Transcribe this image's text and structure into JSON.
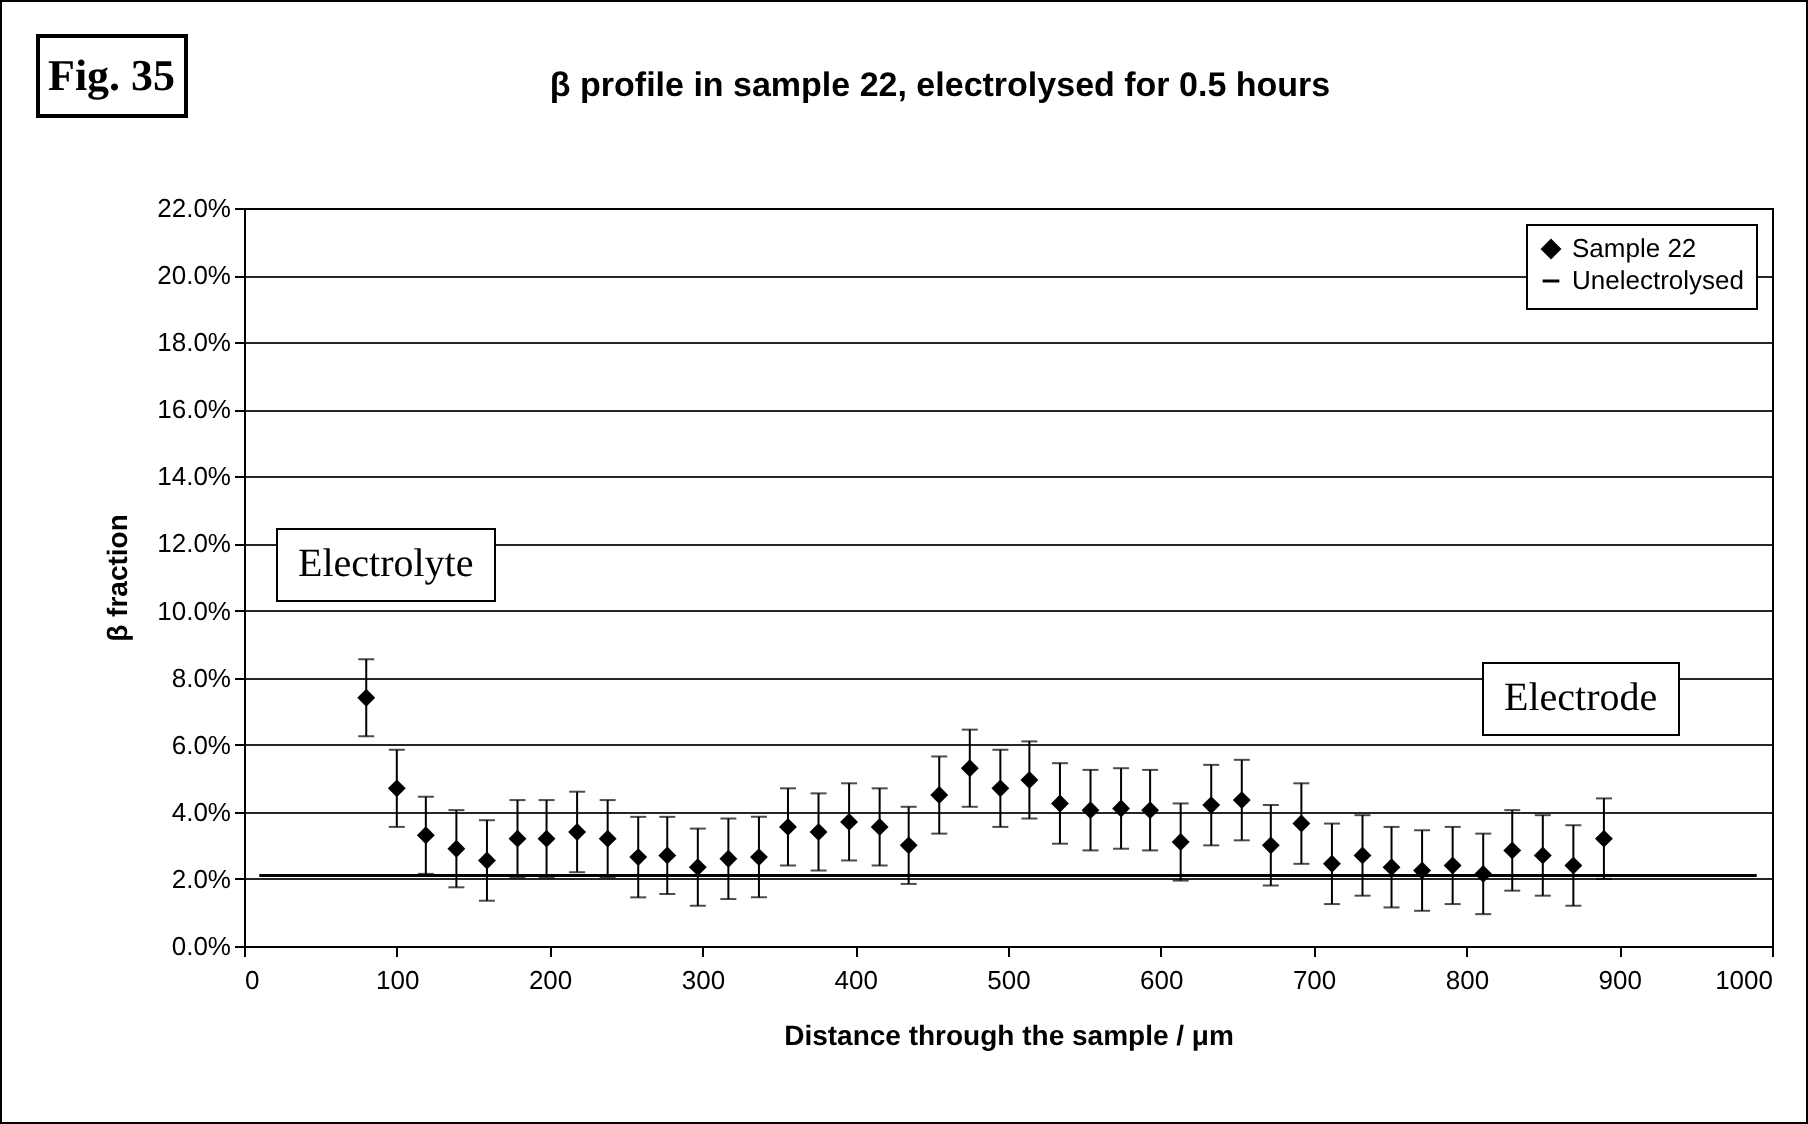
{
  "chart_data": {
    "type": "scatter",
    "title": "β profile in sample 22, electrolysed for 0.5 hours",
    "xlabel": "Distance through the sample / μm",
    "ylabel": "β fraction",
    "annotations": [
      "Fig. 35",
      "Electrolyte",
      "Electrode"
    ],
    "xlim": [
      0,
      1000
    ],
    "xticks": [
      0,
      100,
      200,
      300,
      400,
      500,
      600,
      700,
      800,
      900,
      1000
    ],
    "ylim": [
      0,
      22
    ],
    "yticks": [
      {
        "value": 0,
        "label": "0.0%"
      },
      {
        "value": 2,
        "label": "2.0%"
      },
      {
        "value": 4,
        "label": "4.0%"
      },
      {
        "value": 6,
        "label": "6.0%"
      },
      {
        "value": 8,
        "label": "8.0%"
      },
      {
        "value": 10,
        "label": "10.0%"
      },
      {
        "value": 12,
        "label": "12.0%"
      },
      {
        "value": 14,
        "label": "14.0%"
      },
      {
        "value": 16,
        "label": "16.0%"
      },
      {
        "value": 18,
        "label": "18.0%"
      },
      {
        "value": 20,
        "label": "20.0%"
      },
      {
        "value": 22,
        "label": "22.0%"
      }
    ],
    "grid": "y",
    "legend": "top right",
    "series": [
      {
        "name": "Sample 22",
        "marker": "diamond",
        "color": "#000000",
        "x": [
          80,
          100,
          119,
          139,
          159,
          179,
          198,
          218,
          238,
          258,
          277,
          297,
          317,
          337,
          356,
          376,
          396,
          416,
          435,
          455,
          475,
          495,
          514,
          534,
          554,
          574,
          593,
          613,
          633,
          653,
          672,
          692,
          712,
          732,
          751,
          771,
          791,
          811,
          830,
          850,
          870,
          890
        ],
        "values": [
          7.4,
          4.7,
          3.3,
          2.9,
          2.55,
          3.2,
          3.2,
          3.4,
          3.2,
          2.65,
          2.7,
          2.35,
          2.6,
          2.65,
          3.55,
          3.4,
          3.7,
          3.55,
          3.0,
          4.5,
          5.3,
          4.7,
          4.95,
          4.25,
          4.05,
          4.1,
          4.05,
          3.1,
          4.2,
          4.35,
          3.0,
          3.65,
          2.45,
          2.7,
          2.35,
          2.25,
          2.4,
          2.15,
          2.85,
          2.7,
          2.4,
          3.2
        ],
        "errors": [
          1.15,
          1.15,
          1.15,
          1.15,
          1.2,
          1.15,
          1.15,
          1.2,
          1.15,
          1.2,
          1.15,
          1.15,
          1.2,
          1.2,
          1.15,
          1.15,
          1.15,
          1.15,
          1.15,
          1.15,
          1.15,
          1.15,
          1.15,
          1.2,
          1.2,
          1.2,
          1.2,
          1.15,
          1.2,
          1.2,
          1.2,
          1.2,
          1.2,
          1.2,
          1.2,
          1.2,
          1.15,
          1.2,
          1.2,
          1.2,
          1.2,
          1.2
        ]
      },
      {
        "name": "Unelectrolysed",
        "type": "line",
        "color": "#000000",
        "x": [
          10,
          990
        ],
        "values": [
          2.1,
          2.1
        ]
      }
    ]
  }
}
